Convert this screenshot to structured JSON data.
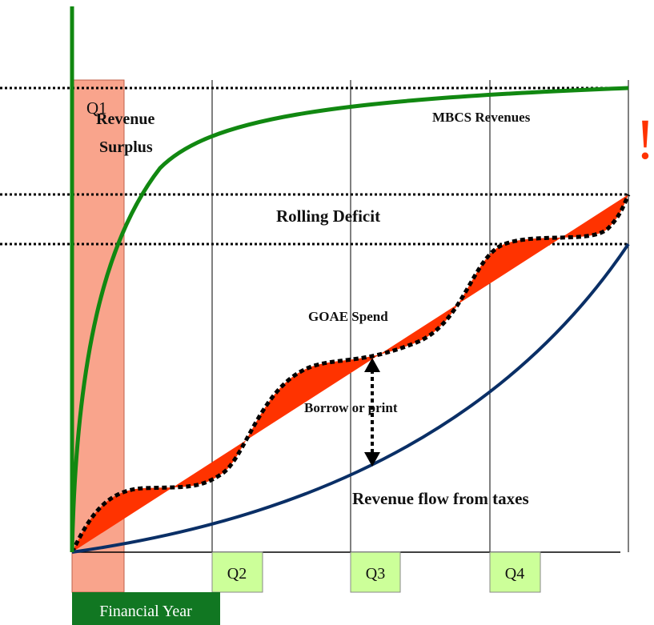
{
  "quarters": [
    "Q1",
    "Q2",
    "Q3",
    "Q4"
  ],
  "labels": {
    "revenue_surplus": [
      "Revenue",
      "Surplus"
    ],
    "mbcs": "MBCS Revenues",
    "alert": "!",
    "rolling_deficit": "Rolling Deficit",
    "goae": "GOAE Spend",
    "borrow": "Borrow or print",
    "tax": "Revenue flow from taxes"
  },
  "footer": "Financial Year"
}
